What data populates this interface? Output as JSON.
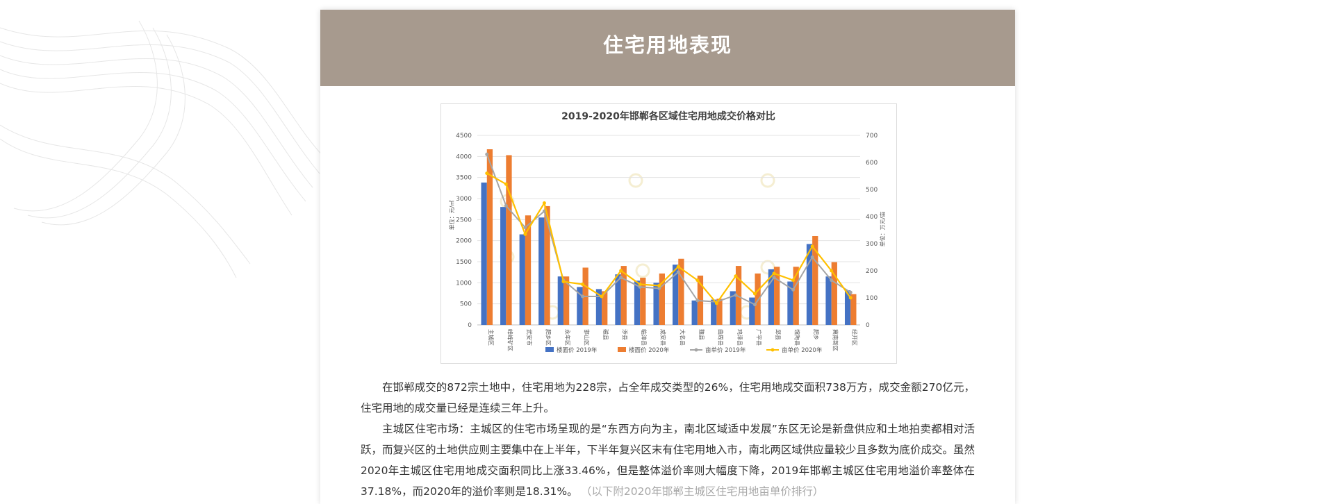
{
  "page": {
    "section_title": "住宅用地表现",
    "paragraphs": [
      "在邯郸成交的872宗土地中，住宅用地为228宗，占全年成交类型的26%，住宅用地成交面积738万方，成交金额270亿元，住宅用地的成交量已经是连续三年上升。",
      "主城区住宅市场：主城区的住宅市场呈现的是“东西方向为主，南北区域适中发展”东区无论是新盘供应和土地拍卖都相对活跃，而复兴区的土地供应则主要集中在上半年，下半年复兴区末有住宅用地入市，南北两区域供应量较少且多数为底价成交。虽然2020年主城区住宅用地成交面积同比上涨33.46%，但是整体溢价率则大幅度下降，2019年邯郸主城区住宅用地溢价率整体在37.18%，而2020年的溢价率则是18.31%。"
    ],
    "note": "（以下附2020年邯郸主城区住宅用地亩单价排行）"
  },
  "colors": {
    "banner": "#a79a8e",
    "bar_2019": "#4472c4",
    "bar_2020": "#ed7d31",
    "line_2019": "#a5a5a5",
    "line_2020": "#ffc000"
  },
  "chart_data": {
    "type": "bar",
    "title": "2019-2020年邯郸各区域住宅用地成交价格对比",
    "ylabel": "单位：元/㎡",
    "y2label": "单位：万元/亩",
    "ylim": [
      0,
      4500
    ],
    "y2lim": [
      0,
      700
    ],
    "yticks": [
      0,
      500,
      1000,
      1500,
      2000,
      2500,
      3000,
      3500,
      4000,
      4500
    ],
    "y2ticks": [
      0,
      100,
      200,
      300,
      400,
      500,
      600,
      700
    ],
    "grid": true,
    "legend_position": "bottom",
    "categories": [
      "主城区",
      "峰峰矿区",
      "武安市",
      "肥乡区",
      "永年区",
      "邯山区",
      "磁县",
      "涉县",
      "临漳县",
      "成安县",
      "大名县",
      "魏县",
      "曲周县",
      "鸡泽县",
      "广平县",
      "邱县",
      "馆陶县",
      "肥乡",
      "冀南新区",
      "经开区"
    ],
    "series": [
      {
        "name": "楼面价 2019年",
        "kind": "bar",
        "axis": "left",
        "values": [
          3380,
          2800,
          2150,
          2550,
          1150,
          900,
          850,
          1200,
          1050,
          1000,
          1430,
          580,
          600,
          800,
          650,
          1320,
          1030,
          1920,
          1150,
          820
        ]
      },
      {
        "name": "楼面价 2020年",
        "kind": "bar",
        "axis": "left",
        "values": [
          4170,
          4030,
          2600,
          2820,
          1150,
          1360,
          800,
          1400,
          1120,
          1220,
          1570,
          1170,
          620,
          1400,
          1220,
          1380,
          1380,
          2110,
          1490,
          730
        ]
      },
      {
        "name": "亩单价 2019年",
        "kind": "line",
        "axis": "right",
        "values": [
          630,
          440,
          360,
          420,
          165,
          105,
          105,
          175,
          140,
          135,
          195,
          90,
          85,
          110,
          75,
          175,
          130,
          250,
          165,
          120
        ]
      },
      {
        "name": "亩单价 2020年",
        "kind": "line",
        "axis": "right",
        "values": [
          560,
          520,
          335,
          450,
          160,
          150,
          105,
          200,
          150,
          145,
          215,
          165,
          80,
          180,
          115,
          190,
          165,
          290,
          200,
          100
        ]
      }
    ]
  }
}
